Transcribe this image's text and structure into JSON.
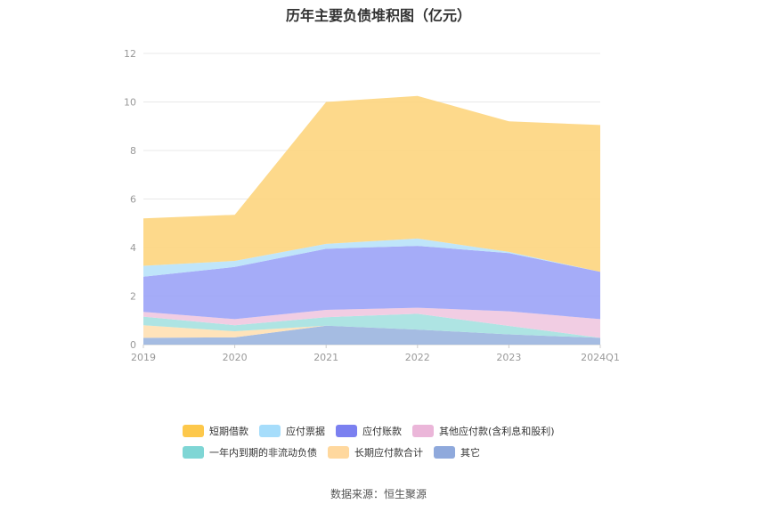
{
  "chart_data": {
    "type": "area",
    "stacked": true,
    "title": "历年主要负债堆积图（亿元）",
    "categories": [
      "2019",
      "2020",
      "2021",
      "2022",
      "2023",
      "2024Q1"
    ],
    "ylim": [
      0,
      12
    ],
    "yticks": [
      0,
      2,
      4,
      6,
      8,
      10,
      12
    ],
    "grid": true,
    "legend_position": "bottom",
    "series": [
      {
        "name": "其它",
        "color": "#9bb5df",
        "values": [
          0.28,
          0.3,
          0.78,
          0.62,
          0.42,
          0.28
        ]
      },
      {
        "name": "长期应付款合计",
        "color": "#ffe0b2",
        "values": [
          0.52,
          0.25,
          0.0,
          0.0,
          0.0,
          0.0
        ]
      },
      {
        "name": "一年内到期的非流动负债",
        "color": "#a5e1e0",
        "values": [
          0.35,
          0.25,
          0.35,
          0.65,
          0.35,
          0.0
        ]
      },
      {
        "name": "其他应付款(含利息和股利)",
        "color": "#f0c8e0",
        "values": [
          0.2,
          0.25,
          0.3,
          0.25,
          0.6,
          0.77
        ]
      },
      {
        "name": "应付账款",
        "color": "#9ba3f7",
        "values": [
          1.45,
          2.15,
          2.52,
          2.55,
          2.4,
          1.95
        ]
      },
      {
        "name": "应付票据",
        "color": "#b8e2fa",
        "values": [
          0.45,
          0.25,
          0.2,
          0.3,
          0.05,
          0.0
        ]
      },
      {
        "name": "短期借款",
        "color": "#fdd57e",
        "values": [
          1.95,
          1.9,
          5.85,
          5.88,
          5.38,
          6.05
        ]
      }
    ]
  },
  "legend": {
    "row1": [
      {
        "name": "短期借款",
        "color": "#fdc84b"
      },
      {
        "name": "应付票据",
        "color": "#a6ddfb"
      },
      {
        "name": "应付账款",
        "color": "#7b80f0"
      },
      {
        "name": "其他应付款(含利息和股利)",
        "color": "#ebb6d9"
      }
    ],
    "row2": [
      {
        "name": "一年内到期的非流动负债",
        "color": "#7fd6d5"
      },
      {
        "name": "长期应付款合计",
        "color": "#ffd89e"
      },
      {
        "name": "其它",
        "color": "#8fa9dc"
      }
    ]
  },
  "source": "数据来源：恒生聚源"
}
